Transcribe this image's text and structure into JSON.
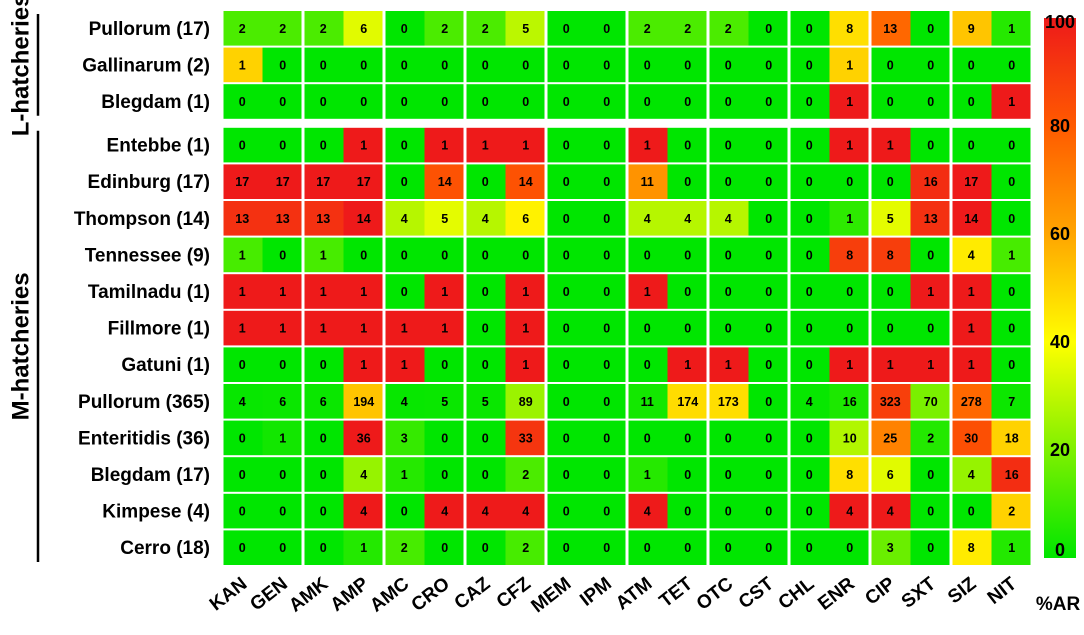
{
  "chart_data": {
    "type": "heatmap",
    "value_label": "%AR",
    "colorbar": {
      "label": "%AR",
      "range": [
        0,
        100
      ],
      "ticks": [
        "0",
        "20",
        "40",
        "60",
        "80",
        "100"
      ],
      "colors": [
        "#00e600",
        "#7ff000",
        "#ffff00",
        "#ffa500",
        "#ff5a00",
        "#ee1a1a"
      ]
    },
    "columns": [
      "KAN",
      "GEN",
      "AMK",
      "AMP",
      "AMC",
      "CRO",
      "CAZ",
      "CFZ",
      "MEM",
      "IPM",
      "ATM",
      "TET",
      "OTC",
      "CST",
      "CHL",
      "ENR",
      "CIP",
      "SXT",
      "SIZ",
      "NIT"
    ],
    "groups": [
      {
        "label": "L-hatcheries",
        "rows": [
          {
            "label": "Pullorum (17)",
            "n": 17,
            "counts": [
              2,
              2,
              2,
              6,
              0,
              2,
              2,
              5,
              0,
              0,
              2,
              2,
              2,
              0,
              0,
              8,
              13,
              0,
              9,
              1
            ]
          },
          {
            "label": "Gallinarum (2)",
            "n": 2,
            "counts": [
              1,
              0,
              0,
              0,
              0,
              0,
              0,
              0,
              0,
              0,
              0,
              0,
              0,
              0,
              0,
              1,
              0,
              0,
              0,
              0
            ]
          },
          {
            "label": "Blegdam (1)",
            "n": 1,
            "counts": [
              0,
              0,
              0,
              0,
              0,
              0,
              0,
              0,
              0,
              0,
              0,
              0,
              0,
              0,
              0,
              1,
              0,
              0,
              0,
              1
            ]
          }
        ]
      },
      {
        "label": "M-hatcheries",
        "rows": [
          {
            "label": "Entebbe (1)",
            "n": 1,
            "counts": [
              0,
              0,
              0,
              1,
              0,
              1,
              1,
              1,
              0,
              0,
              1,
              0,
              0,
              0,
              0,
              1,
              1,
              0,
              0,
              0
            ]
          },
          {
            "label": "Edinburg (17)",
            "n": 17,
            "counts": [
              17,
              17,
              17,
              17,
              0,
              14,
              0,
              14,
              0,
              0,
              11,
              0,
              0,
              0,
              0,
              0,
              0,
              16,
              17,
              0
            ]
          },
          {
            "label": "Thompson (14)",
            "n": 14,
            "counts": [
              13,
              13,
              13,
              14,
              4,
              5,
              4,
              6,
              0,
              0,
              4,
              4,
              4,
              0,
              0,
              1,
              5,
              13,
              14,
              0
            ]
          },
          {
            "label": "Tennessee (9)",
            "n": 9,
            "counts": [
              1,
              0,
              1,
              0,
              0,
              0,
              0,
              0,
              0,
              0,
              0,
              0,
              0,
              0,
              0,
              8,
              8,
              0,
              4,
              1
            ]
          },
          {
            "label": "Tamilnadu (1)",
            "n": 1,
            "counts": [
              1,
              1,
              1,
              1,
              0,
              1,
              0,
              1,
              0,
              0,
              1,
              0,
              0,
              0,
              0,
              0,
              0,
              1,
              1,
              0
            ]
          },
          {
            "label": "Fillmore (1)",
            "n": 1,
            "counts": [
              1,
              1,
              1,
              1,
              1,
              1,
              0,
              1,
              0,
              0,
              0,
              0,
              0,
              0,
              0,
              0,
              0,
              0,
              1,
              0
            ]
          },
          {
            "label": "Gatuni (1)",
            "n": 1,
            "counts": [
              0,
              0,
              0,
              1,
              1,
              0,
              0,
              1,
              0,
              0,
              0,
              1,
              1,
              0,
              0,
              1,
              1,
              1,
              1,
              0
            ]
          },
          {
            "label": "Pullorum (365)",
            "n": 365,
            "counts": [
              4,
              6,
              6,
              194,
              4,
              5,
              5,
              89,
              0,
              0,
              11,
              174,
              173,
              0,
              4,
              16,
              323,
              70,
              278,
              7
            ]
          },
          {
            "label": "Enteritidis (36)",
            "n": 36,
            "counts": [
              0,
              1,
              0,
              36,
              3,
              0,
              0,
              33,
              0,
              0,
              0,
              0,
              0,
              0,
              0,
              10,
              25,
              2,
              30,
              18
            ]
          },
          {
            "label": "Blegdam (17)",
            "n": 17,
            "counts": [
              0,
              0,
              0,
              4,
              1,
              0,
              0,
              2,
              0,
              0,
              1,
              0,
              0,
              0,
              0,
              8,
              6,
              0,
              4,
              16
            ]
          },
          {
            "label": "Kimpese (4)",
            "n": 4,
            "counts": [
              0,
              0,
              0,
              4,
              0,
              4,
              4,
              4,
              0,
              0,
              4,
              0,
              0,
              0,
              0,
              4,
              4,
              0,
              0,
              2
            ]
          },
          {
            "label": "Cerro (18)",
            "n": 18,
            "counts": [
              0,
              0,
              0,
              1,
              2,
              0,
              0,
              2,
              0,
              0,
              0,
              0,
              0,
              0,
              0,
              0,
              3,
              0,
              8,
              1
            ]
          }
        ]
      }
    ]
  }
}
